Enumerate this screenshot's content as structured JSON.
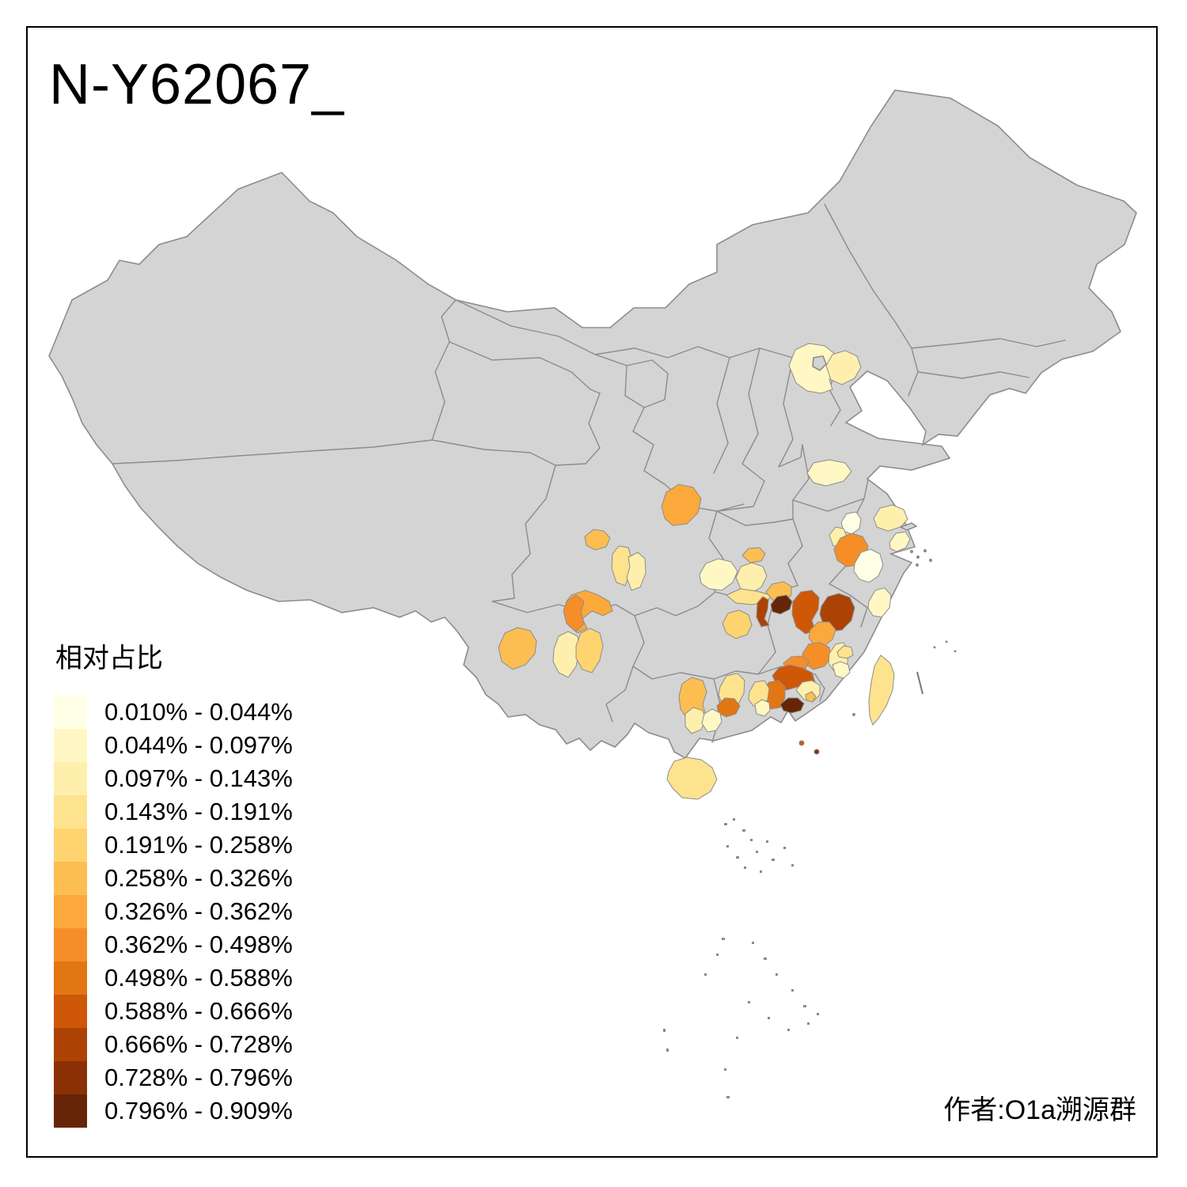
{
  "title": "N-Y62067_",
  "credit": "作者:O1a溯源群",
  "legend": {
    "title": "相对占比",
    "classes": [
      {
        "label": "0.010% - 0.044%",
        "color": "#FFFFE5"
      },
      {
        "label": "0.044% - 0.097%",
        "color": "#FFF8C5"
      },
      {
        "label": "0.097% - 0.143%",
        "color": "#FEF0AC"
      },
      {
        "label": "0.143% - 0.191%",
        "color": "#FEE38F"
      },
      {
        "label": "0.191% - 0.258%",
        "color": "#FED470"
      },
      {
        "label": "0.258% - 0.326%",
        "color": "#FDBE51"
      },
      {
        "label": "0.326% - 0.362%",
        "color": "#FCA93C"
      },
      {
        "label": "0.362% - 0.498%",
        "color": "#F68E28"
      },
      {
        "label": "0.498% - 0.588%",
        "color": "#E27613"
      },
      {
        "label": "0.588% - 0.666%",
        "color": "#CE5807"
      },
      {
        "label": "0.666% - 0.728%",
        "color": "#AC4204"
      },
      {
        "label": "0.728% - 0.796%",
        "color": "#8A3004"
      },
      {
        "label": "0.796% - 0.909%",
        "color": "#662506"
      }
    ]
  },
  "map": {
    "land_fill": "#D4D4D4",
    "boundary_color": "#8C8C8C",
    "sea_fill": "#FFFFFF",
    "regions": {
      "beijing": 2,
      "tangshan": 3,
      "shandong-sw": 2,
      "hanzhong": 7,
      "sichuan-mid": 6,
      "chengdu-w": 4,
      "chengdu-e": 3,
      "sichuan-s": 7,
      "sichuan-sw": 8,
      "dali": 6,
      "kunming": 3,
      "qujing": 5,
      "hubei-small": 6,
      "chongqing-w": 2,
      "chongqing-e": 3,
      "chongqing-s": 4,
      "hunan-nw": 5,
      "jiangxi-nw": 6,
      "jiangxi-w-dark": 13,
      "jiangxi-w-narrow": 11,
      "nanchang": 10,
      "jiangxi-ne": 11,
      "nanping": 7,
      "sanming": 8,
      "fuzhou": 3,
      "fujian-coast": 4,
      "fujian-se": 2,
      "ganzhou": 8,
      "guangdong-n": 10,
      "guangzhou": 9,
      "pearl-delta": 13,
      "zhangzhou": 3,
      "xiamen": 6,
      "baise": 6,
      "guangxi-sw": 3,
      "guangxi-mid": 4,
      "yulin": 9,
      "guangxi-s": 2,
      "gd-west": 4,
      "gd-west-s": 2,
      "hainan": 4,
      "taiwan": 4,
      "yancheng": 3,
      "jiangsu-c": 1,
      "jiangsu-w": 3,
      "nanjing": 8,
      "zhejiang-n": 1,
      "zhejiang-s": 2,
      "shanghai": 2,
      "islet-a": 10,
      "islet-b": 12
    }
  }
}
